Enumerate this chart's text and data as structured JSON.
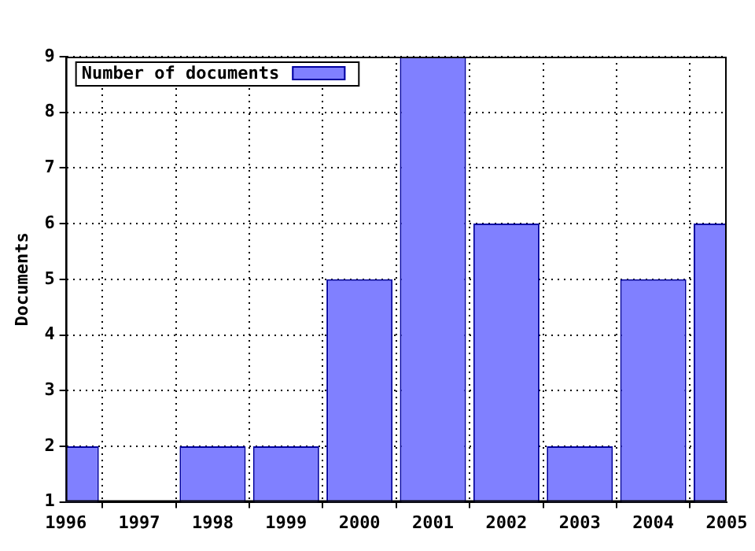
{
  "chart_data": {
    "type": "bar",
    "ylabel": "Documents",
    "x": [
      1996,
      1997,
      1998,
      1999,
      2000,
      2001,
      2002,
      2003,
      2004,
      2005
    ],
    "series": [
      {
        "name": "Number of documents",
        "color": "#8080ff",
        "values": [
          2,
          null,
          2,
          2,
          5,
          9,
          6,
          2,
          5,
          6
        ]
      }
    ],
    "xlim": [
      1996,
      2005
    ],
    "xticks": [
      1996,
      1997,
      1998,
      1999,
      2000,
      2001,
      2002,
      2003,
      2004,
      2005
    ],
    "ylim": [
      1,
      9
    ],
    "yticks": [
      1,
      2,
      3,
      4,
      5,
      6,
      7,
      8,
      9
    ],
    "grid": true,
    "legend": "top left"
  }
}
